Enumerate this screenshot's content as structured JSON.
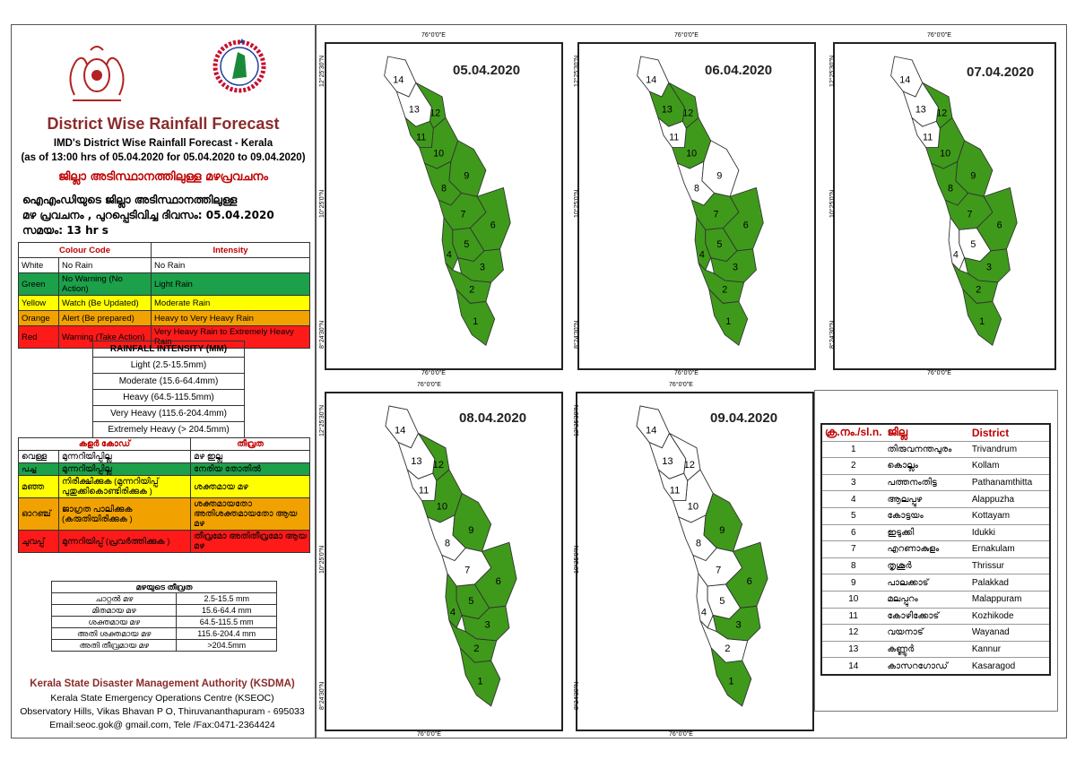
{
  "header": {
    "title": "District Wise Rainfall Forecast",
    "subtitle": "IMD's District Wise Rainfall Forecast - Kerala",
    "period": "(as of 13:00 hrs of 05.04.2020  for 05.04.2020  to 09.04.2020)",
    "ml_title": "ജില്ലാ അടിസ്ഥാനത്തിലുള്ള മഴപ്രവചനം",
    "ml_line1": "ഐഎംഡിയുടെ ജില്ലാ      അടിസ്ഥാനത്തിലുള്ള",
    "ml_line2": "മഴ പ്രവചനം , പുറപ്പെടിവിച്ച       ദിവസം: 05.04.2020",
    "ml_line3": "സമയം: 13  hr s"
  },
  "colour_table": {
    "headers": [
      "Colour Code",
      "Intensity"
    ],
    "rows": [
      {
        "colour": "White",
        "code": "No Rain",
        "intensity": "No Rain",
        "class": "row-white"
      },
      {
        "colour": "Green",
        "code": "No Warning (No Action)",
        "intensity": "Light Rain",
        "class": "row-green"
      },
      {
        "colour": "Yellow",
        "code": "Watch (Be Updated)",
        "intensity": "Moderate Rain",
        "class": "row-yellow"
      },
      {
        "colour": "Orange",
        "code": "Alert (Be prepared)",
        "intensity": "Heavy to Very Heavy Rain",
        "class": "row-orange"
      },
      {
        "colour": "Red",
        "code": "Warning (Take Action)",
        "intensity": "Very Heavy Rain to Extremely Heavy Rain",
        "class": "row-red"
      }
    ]
  },
  "intensity_table": {
    "header": "RAINFALL INTENSITY (MM)",
    "rows": [
      "Light (2.5-15.5mm)",
      "Moderate (15.6-64.4mm)",
      "Heavy (64.5-115.5mm)",
      "Very Heavy (115.6-204.4mm)",
      "Extremely Heavy (> 204.5mm)"
    ]
  },
  "ml_colour_table": {
    "headers": [
      "കളർ കോഡ്",
      "തീവ്രത"
    ],
    "rows": [
      {
        "colour": "വെള്ള",
        "code": "മുന്നറിയിപ്പില്ല",
        "intensity": "മഴ ഇല്ല",
        "class": "row-white"
      },
      {
        "colour": "പച്ച",
        "code": "മുന്നറിയിപ്പില്ല",
        "intensity": "നേരിയ തോതിൽ",
        "class": "row-green"
      },
      {
        "colour": "മഞ്ഞ",
        "code": "നിരീക്ഷിക്കുക (മുന്നറിയിപ്പ് പുതുക്കികൊണ്ടിരിക്കുക )",
        "intensity": "ശക്തമായ മഴ",
        "class": "row-yellow"
      },
      {
        "colour": "ഓറഞ്ച്",
        "code": "ജാഗ്രത പാലിക്കുക (കരുതിയിരിക്കുക )",
        "intensity": "ശക്തമായതോ അതിശക്തമായതോ ആയ മഴ",
        "class": "row-orange"
      },
      {
        "colour": "ചുവപ്പ്",
        "code": "മുന്നറിയിപ്പ് (പ്രവർത്തിക്കുക )",
        "intensity": "തീവ്രമോ അതിതീവ്രമോ ആയ മഴ",
        "class": "row-red"
      }
    ]
  },
  "ml_intensity_table": {
    "header": "മഴയുടെ തീവ്രത",
    "rows": [
      {
        "label": "ചാറ്റൽ മഴ",
        "range": "2.5-15.5 mm"
      },
      {
        "label": "മിതമായ മഴ",
        "range": "15.6-64.4 mm"
      },
      {
        "label": "ശക്തമായ മഴ",
        "range": "64.5-115.5 mm"
      },
      {
        "label": "അതി ശക്തമായ മഴ",
        "range": "115.6-204.4 mm"
      },
      {
        "label": "അതി തീവ്രമായ മഴ",
        "range": ">204.5mm"
      }
    ]
  },
  "footer": {
    "org": "Kerala State Disaster Management Authority (KSDMA)",
    "line1": "Kerala State Emergency Operations Centre (KSEOC)",
    "line2": "Observatory Hills, Vikas Bhavan P O, Thiruvananthapuram - 695033",
    "line3": "Email:seoc.gok@ gmail.com, Tele /Fax:0471-2364424"
  },
  "colors": {
    "green": "#3f9a1b",
    "white": "#ffffff",
    "outline": "#333333"
  },
  "axis_labels": {
    "lon": "76°0'0\"E",
    "lat_top": "12°25'30\"N",
    "lat_mid": "10°25'0\"N",
    "lat_bot": "8°24'30\"N"
  },
  "maps": [
    {
      "date": "05.04.2020",
      "green": [
        1,
        2,
        3,
        4,
        5,
        6,
        7,
        8,
        9,
        10,
        11,
        12
      ]
    },
    {
      "date": "06.04.2020",
      "green": [
        1,
        2,
        3,
        4,
        5,
        6,
        7,
        10,
        12,
        13
      ]
    },
    {
      "date": "07.04.2020",
      "green": [
        1,
        2,
        3,
        6,
        7,
        8,
        9,
        10,
        12
      ]
    },
    {
      "date": "08.04.2020",
      "green": [
        1,
        2,
        3,
        4,
        5,
        6,
        9,
        10,
        12
      ]
    },
    {
      "date": "09.04.2020",
      "green": [
        1,
        3,
        6,
        9
      ]
    }
  ],
  "district_table": {
    "headers": [
      "ക്ര.നം./sl.n.",
      "ജില്ല",
      "District"
    ],
    "rows": [
      {
        "n": "1",
        "ml": "തിരുവനന്തപുരം",
        "en": "Trivandrum"
      },
      {
        "n": "2",
        "ml": "കൊല്ലം",
        "en": "Kollam"
      },
      {
        "n": "3",
        "ml": "പത്തനംതിട്ട",
        "en": "Pathanamthitta"
      },
      {
        "n": "4",
        "ml": "ആലപ്പുഴ",
        "en": "Alappuzha"
      },
      {
        "n": "5",
        "ml": "കോട്ടയം",
        "en": "Kottayam"
      },
      {
        "n": "6",
        "ml": "ഇടുക്കി",
        "en": "Idukki"
      },
      {
        "n": "7",
        "ml": "എറണാകുളം",
        "en": "Ernakulam"
      },
      {
        "n": "8",
        "ml": "തൃശൂർ",
        "en": "Thrissur"
      },
      {
        "n": "9",
        "ml": "പാലക്കാട്",
        "en": "Palakkad"
      },
      {
        "n": "10",
        "ml": "മലപ്പുറം",
        "en": "Malappuram"
      },
      {
        "n": "11",
        "ml": "കോഴിക്കോട്",
        "en": "Kozhikode"
      },
      {
        "n": "12",
        "ml": "വയനാട്",
        "en": "Wayanad"
      },
      {
        "n": "13",
        "ml": "കണ്ണൂർ",
        "en": "Kannur"
      },
      {
        "n": "14",
        "ml": "കാസറഗോഡ്",
        "en": "Kasaragod"
      }
    ]
  }
}
